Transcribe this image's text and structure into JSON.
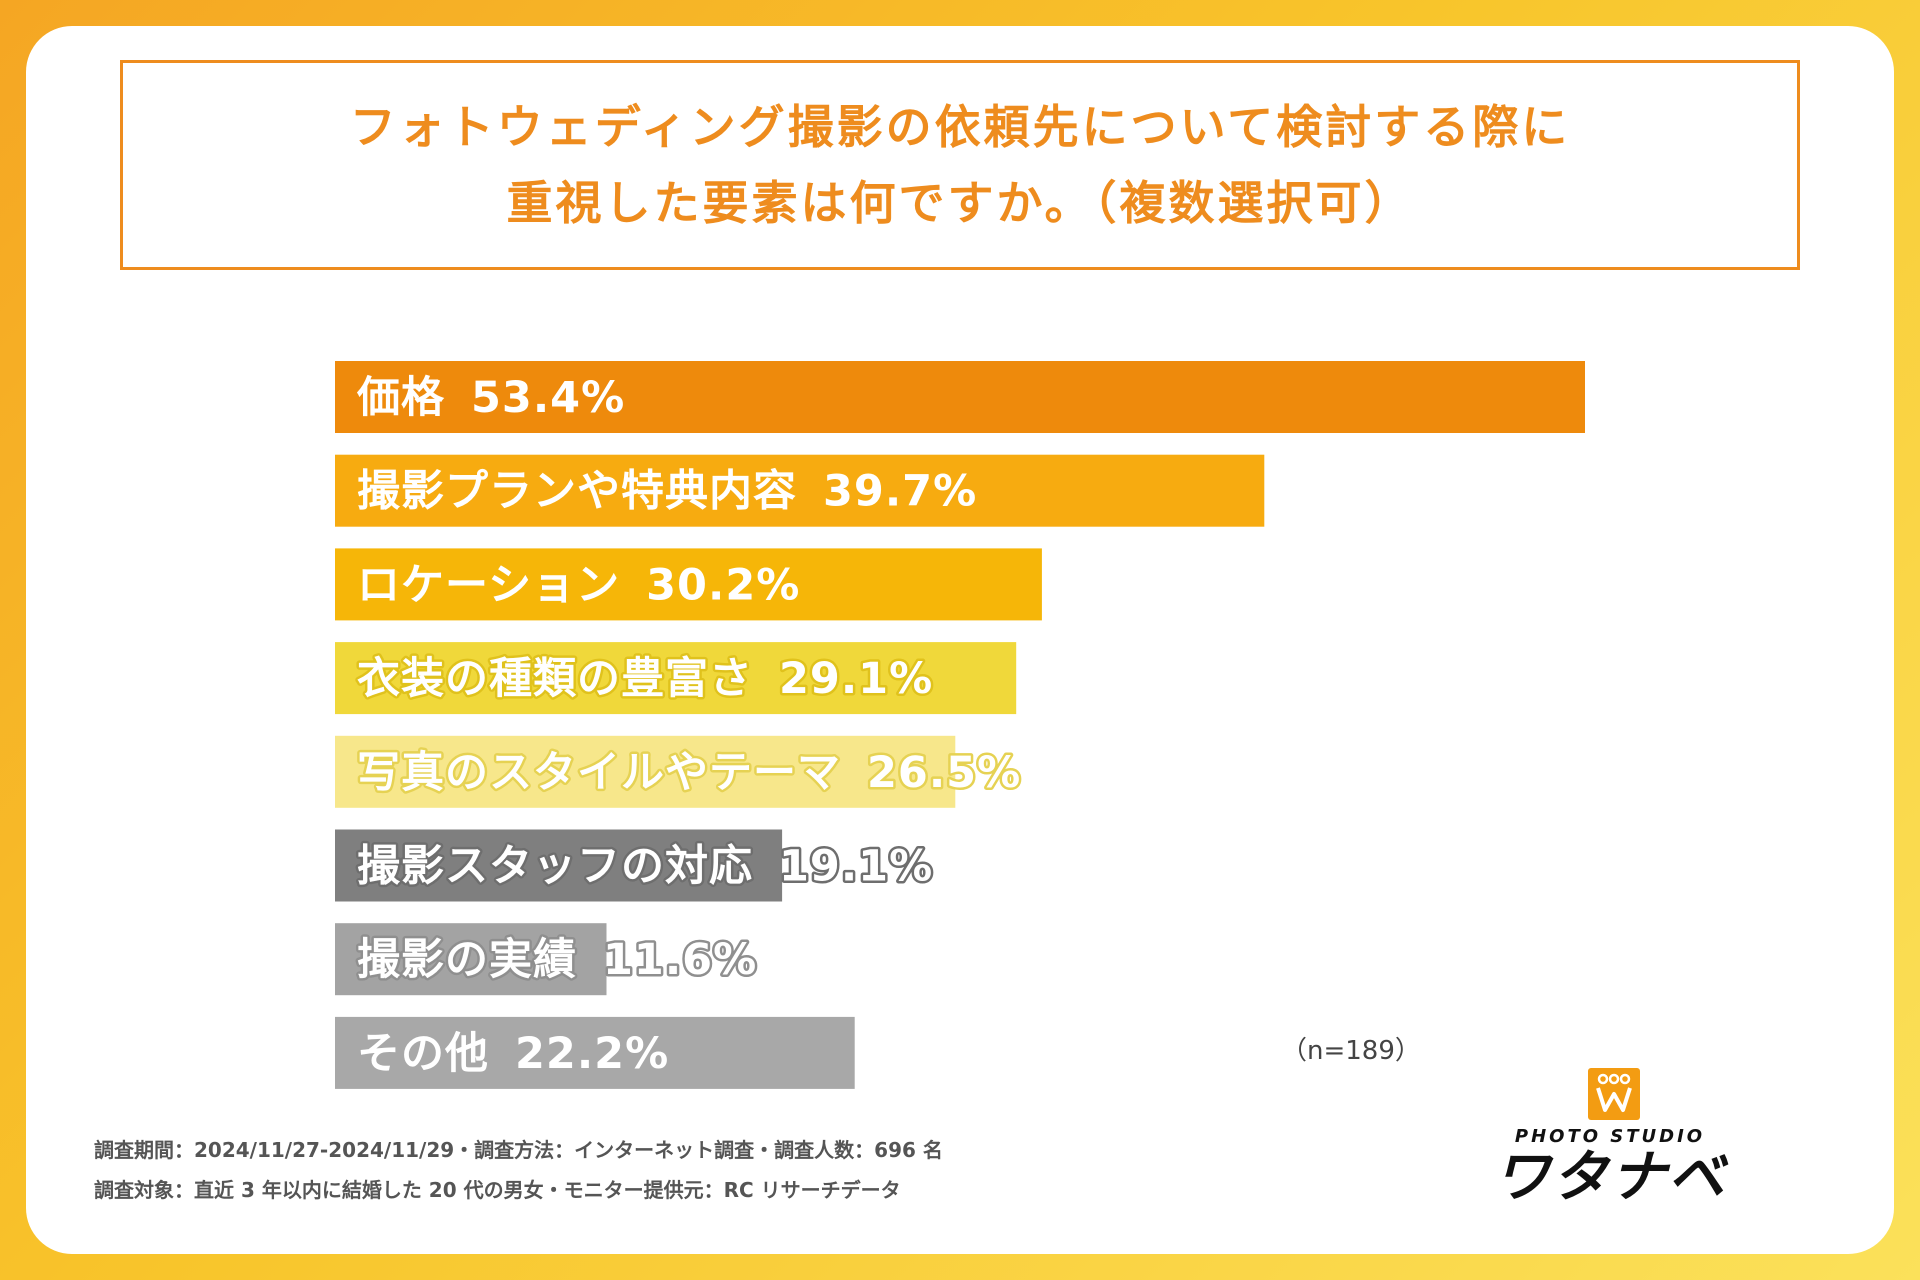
{
  "title": {
    "line1": "フォトウェディング撮影の依頼先について検討する際に",
    "line2": "重視した要素は何ですか。（複数選択可）"
  },
  "chart_data": {
    "type": "bar",
    "orientation": "horizontal",
    "title": "フォトウェディング撮影の依頼先について検討する際に重視した要素は何ですか。（複数選択可）",
    "categories": [
      "価格",
      "撮影プランや特典内容",
      "ロケーション",
      "衣装の種類の豊富さ",
      "写真のスタイルやテーマ",
      "撮影スタッフの対応",
      "撮影の実績",
      "その他"
    ],
    "values": [
      53.4,
      39.7,
      30.2,
      29.1,
      26.5,
      19.1,
      11.6,
      22.2
    ],
    "display_values": [
      "53.4%",
      "39.7%",
      "30.2%",
      "29.1%",
      "26.5%",
      "19.1%",
      "11.6%",
      "22.2%"
    ],
    "colors": [
      "#ee8a0c",
      "#f7ab10",
      "#f6b608",
      "#f0d83a",
      "#f7e78b",
      "#7f7f7f",
      "#a3a3a3",
      "#a8a8a8"
    ],
    "label_colors": [
      "#ffffff",
      "#ffffff",
      "#ffffff",
      "#ffffff",
      "#ffffff",
      "#ffffff",
      "#ffffff",
      "#ffffff"
    ],
    "label_outline": [
      "",
      "",
      "",
      "#e0c21c",
      "#e6d253",
      "#6e6e6e",
      "#8f8f8f",
      ""
    ],
    "xlim": [
      0,
      100
    ],
    "unit": "%"
  },
  "sample_size": "（n=189）",
  "footer": {
    "line1": "調査期間：2024/11/27-2024/11/29・調査方法：インターネット調査・調査人数：696 名",
    "line2": "調査対象：直近 3 年以内に結婚した 20 代の男女・モニター提供元：RC リサーチデータ"
  },
  "logo": {
    "studio": "PHOTO STUDIO",
    "name": "ワタナベ",
    "icon_color": "#f39c12"
  }
}
